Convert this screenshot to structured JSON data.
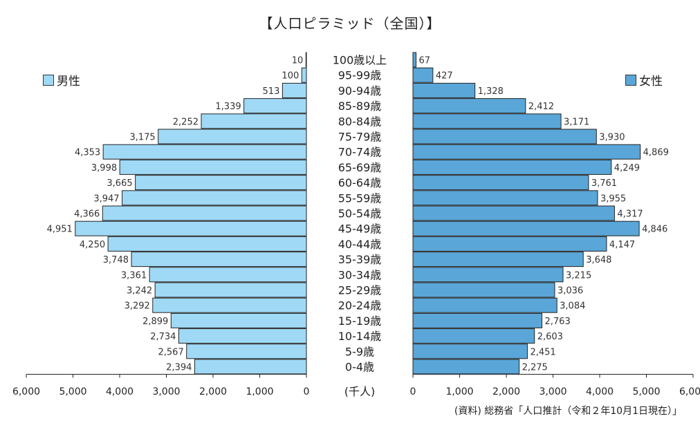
{
  "chart_data": {
    "type": "bar",
    "title": "【人口ピラミッド（全国）】",
    "unit_label": "(千人)",
    "source": "(資料) 総務省「人口推計（令和２年10月1日現在）」",
    "categories": [
      "0-4歳",
      "5-9歳",
      "10-14歳",
      "15-19歳",
      "20-24歳",
      "25-29歳",
      "30-34歳",
      "35-39歳",
      "40-44歳",
      "45-49歳",
      "50-54歳",
      "55-59歳",
      "60-64歳",
      "65-69歳",
      "70-74歳",
      "75-79歳",
      "80-84歳",
      "85-89歳",
      "90-94歳",
      "95-99歳",
      "100歳以上"
    ],
    "series": [
      {
        "name": "男性",
        "color": "#9fd9f6",
        "values": [
          2394,
          2567,
          2734,
          2899,
          3292,
          3242,
          3361,
          3748,
          4250,
          4951,
          4366,
          3947,
          3665,
          3998,
          4353,
          3175,
          2252,
          1339,
          513,
          100,
          10
        ],
        "labels": [
          "2,394",
          "2,567",
          "2,734",
          "2,899",
          "3,292",
          "3,242",
          "3,361",
          "3,748",
          "4,250",
          "4,951",
          "4,366",
          "3,947",
          "3,665",
          "3,998",
          "4,353",
          "3,175",
          "2,252",
          "1,339",
          "513",
          "100",
          "10"
        ]
      },
      {
        "name": "女性",
        "color": "#5aa6d8",
        "values": [
          2275,
          2451,
          2603,
          2763,
          3084,
          3036,
          3215,
          3648,
          4147,
          4846,
          4317,
          3955,
          3761,
          4249,
          4869,
          3930,
          3171,
          2412,
          1328,
          427,
          67
        ],
        "labels": [
          "2,275",
          "2,451",
          "2,603",
          "2,763",
          "3,084",
          "3,036",
          "3,215",
          "3,648",
          "4,147",
          "4,846",
          "4,317",
          "3,955",
          "3,761",
          "4,249",
          "4,869",
          "3,930",
          "3,171",
          "2,412",
          "1,328",
          "427",
          "67"
        ]
      }
    ],
    "xlim": [
      0,
      6000
    ],
    "x_ticks": [
      0,
      1000,
      2000,
      3000,
      4000,
      5000,
      6000
    ],
    "x_tick_labels": [
      "0",
      "1,000",
      "2,000",
      "3,000",
      "4,000",
      "5,000",
      "6,000"
    ]
  }
}
